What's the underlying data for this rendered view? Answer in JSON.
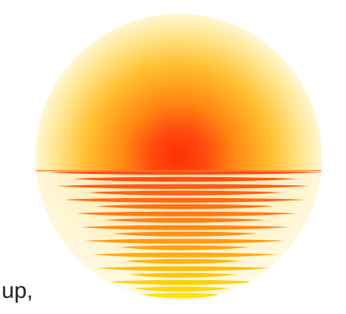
{
  "caption": "up,",
  "colors": {
    "glow_center": "#ff3b0a",
    "glow_mid": "#ff8a14",
    "glow_outer": "#ffd24a",
    "glow_edge": "#fff3c0",
    "reflection_top": "#ff5418",
    "reflection_mid": "#ff9a1a",
    "reflection_bottom": "#ffe60a"
  }
}
